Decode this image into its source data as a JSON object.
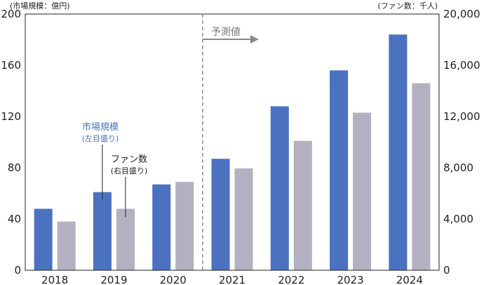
{
  "chart_data": {
    "type": "bar",
    "categories": [
      "2018",
      "2019",
      "2020",
      "2021",
      "2022",
      "2023",
      "2024"
    ],
    "series": [
      {
        "name": "市場規模",
        "axis": "left",
        "values": [
          48,
          61,
          67,
          87,
          128,
          156,
          184
        ],
        "color": "#4a72c0"
      },
      {
        "name": "ファン数",
        "axis": "right",
        "values": [
          3800,
          4800,
          6900,
          7950,
          10100,
          12300,
          14600
        ],
        "color": "#b3b1c1"
      }
    ],
    "left_axis": {
      "label": "(市場規模：億円)",
      "range": [
        0,
        200
      ],
      "ticks": [
        "0",
        "40",
        "80",
        "120",
        "160",
        "200"
      ]
    },
    "right_axis": {
      "label": "(ファン数：千人)",
      "range": [
        0,
        20000
      ],
      "ticks": [
        "0",
        "4,000",
        "8,000",
        "12,000",
        "16,000",
        "20,000"
      ]
    },
    "forecast_label": "予測値",
    "annotations": {
      "left_series": {
        "title": "市場規模",
        "note": "(左目盛り)"
      },
      "right_series": {
        "title": "ファン数",
        "note": "(右目盛り)"
      }
    },
    "colors": {
      "axis": "#222222",
      "divider": "#777777",
      "arrow": "#8a8a8a",
      "annotation_blue": "#4a72c0"
    },
    "grid": false,
    "legend": "none"
  }
}
